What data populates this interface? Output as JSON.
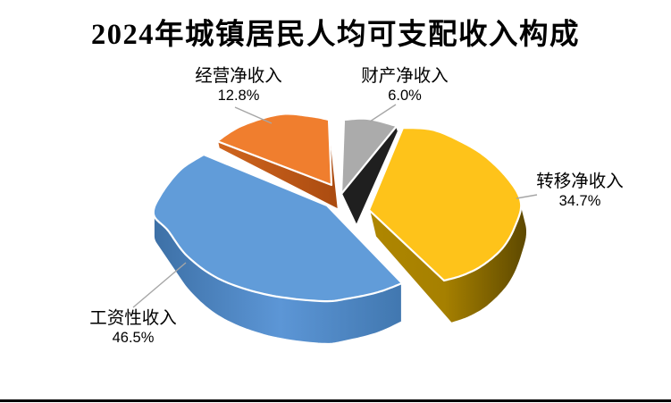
{
  "chart_data": {
    "type": "pie",
    "variant": "3d-exploded",
    "title": "2024年城镇居民人均可支配收入构成",
    "unit": "%",
    "start_angle_deg": 0,
    "direction": "clockwise",
    "slices": [
      {
        "label": "财产净收入",
        "value": 6.0,
        "pct_label": "6.0%",
        "color": "#ABABAB",
        "side_color": "#1F1F1F"
      },
      {
        "label": "转移净收入",
        "value": 34.7,
        "pct_label": "34.7%",
        "color": "#FEC31A",
        "side_color": "#A68000"
      },
      {
        "label": "工资性收入",
        "value": 46.5,
        "pct_label": "46.5%",
        "color": "#619CD9",
        "side_color": "#4A84C2"
      },
      {
        "label": "经营净收入",
        "value": 12.8,
        "pct_label": "12.8%",
        "color": "#F07E2E",
        "side_color": "#C2591B"
      }
    ],
    "leader_line_color": "#A6A6A6",
    "background": "#FFFFFF",
    "bottom_border_color": "#000000"
  }
}
